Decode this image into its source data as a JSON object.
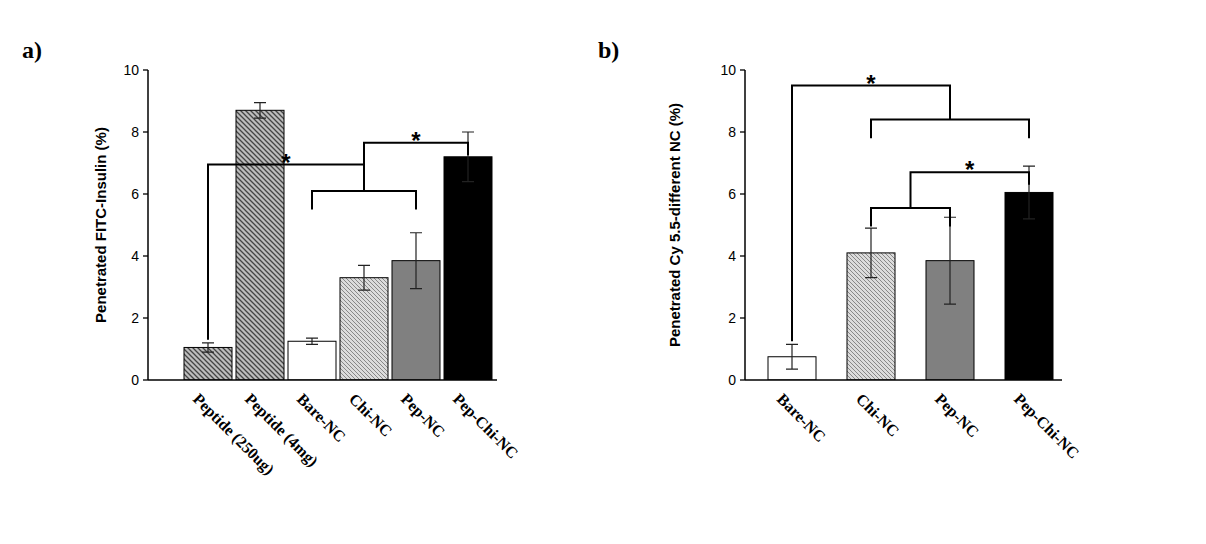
{
  "chart_data": [
    {
      "type": "bar",
      "title": "a)",
      "y_label": "Penetrated FITC-Insulin (%)",
      "categories": [
        "Peptide (250ug)",
        "Peptide (4mg)",
        "Bare-NC",
        "Chi-NC",
        "Pep-NC",
        "Pep-Chi-NC"
      ],
      "values": [
        1.05,
        8.7,
        1.25,
        3.3,
        3.85,
        7.2
      ],
      "errors": [
        0.15,
        0.25,
        0.1,
        0.4,
        0.9,
        0.8
      ],
      "colors": [
        "#bdbdbd",
        "#bdbdbd",
        "#ffffff",
        "#dcdcdc",
        "#808080",
        "#000000"
      ],
      "ylim": [
        0,
        10
      ],
      "yticks": [
        0,
        2,
        4,
        6,
        8,
        10
      ],
      "grid": false,
      "annotations": [
        {
          "from": 2,
          "to": 4,
          "y": 6.1
        },
        {
          "from": 0,
          "to": 3,
          "y": 6.95,
          "text": "*"
        },
        {
          "from": 3,
          "to": 5,
          "y": 7.65,
          "text": "*"
        }
      ]
    },
    {
      "type": "bar",
      "title": "b)",
      "y_label": "Penetrated Cy 5.5-different NC (%)",
      "categories": [
        "Bare-NC",
        "Chi-NC",
        "Pep-NC",
        "Pep-Chi-NC"
      ],
      "values": [
        0.75,
        4.1,
        3.85,
        6.05
      ],
      "errors": [
        0.4,
        0.8,
        1.4,
        0.85
      ],
      "colors": [
        "#ffffff",
        "#dcdcdc",
        "#808080",
        "#000000"
      ],
      "ylim": [
        0,
        10
      ],
      "yticks": [
        0,
        2,
        4,
        6,
        8,
        10
      ],
      "grid": false,
      "annotations": [
        {
          "from": 1,
          "to": 3,
          "y": 8.4
        },
        {
          "from": 1,
          "to": 2,
          "y": 5.55
        },
        {
          "from": 0,
          "to": 2,
          "y": 9.5,
          "text": "*"
        },
        {
          "from": 1.5,
          "to": 3,
          "y": 6.7,
          "text": "*"
        }
      ]
    }
  ]
}
